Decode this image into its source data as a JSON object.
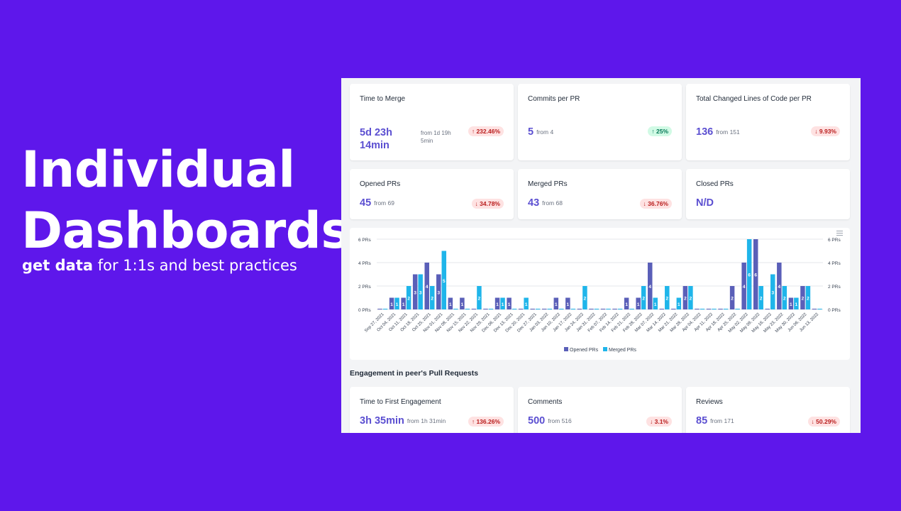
{
  "hero": {
    "title_line1": "Individual",
    "title_line2": "Dashboards",
    "subtitle_bold": "get data",
    "subtitle_rest": " for 1:1s and best practices"
  },
  "metrics_top": [
    {
      "title": "Time to Merge",
      "value_line1": "5d 23h",
      "value_line2": "14min",
      "from_line1": "from 1d 19h",
      "from_line2": "5min",
      "badge": "↑ 232.46%",
      "badge_type": "up"
    },
    {
      "title": "Commits per PR",
      "value": "5",
      "from": "from 4",
      "badge": "↑ 25%",
      "badge_type": "good"
    },
    {
      "title": "Total Changed Lines of Code per PR",
      "value": "136",
      "from": "from 151",
      "badge": "↓ 9.93%",
      "badge_type": "down"
    }
  ],
  "metrics_mid": [
    {
      "title": "Opened PRs",
      "value": "45",
      "from": "from 69",
      "badge": "↓ 34.78%",
      "badge_type": "down"
    },
    {
      "title": "Merged PRs",
      "value": "43",
      "from": "from 68",
      "badge": "↓ 36.76%",
      "badge_type": "down"
    },
    {
      "title": "Closed PRs",
      "value": "N/D",
      "from": "",
      "badge": "",
      "badge_type": ""
    }
  ],
  "chart_data": {
    "type": "bar",
    "categories": [
      "Sep 27, 2021",
      "Oct 04, 2021",
      "Oct 11, 2021",
      "Oct 18, 2021",
      "Oct 25, 2021",
      "Nov 01, 2021",
      "Nov 08, 2021",
      "Nov 15, 2021",
      "Nov 22, 2021",
      "Nov 29, 2021",
      "Dec 06, 2021",
      "Dec 13, 2021",
      "Dec 20, 2021",
      "Dec 27, 2021",
      "Jan 03, 2022",
      "Jan 10, 2022",
      "Jan 17, 2022",
      "Jan 24, 2022",
      "Jan 31, 2022",
      "Feb 07, 2022",
      "Feb 14, 2022",
      "Feb 21, 2022",
      "Feb 28, 2022",
      "Mar 07, 2022",
      "Mar 14, 2022",
      "Mar 21, 2022",
      "Mar 28, 2022",
      "Apr 04, 2022",
      "Apr 11, 2022",
      "Apr 18, 2022",
      "Apr 25, 2022",
      "May 02, 2022",
      "May 09, 2022",
      "May 16, 2022",
      "May 23, 2022",
      "May 30, 2022",
      "Jun 06, 2022",
      "Jun 13, 2022"
    ],
    "series": [
      {
        "name": "Opened PRs",
        "color": "#5a5fb8",
        "values": [
          0,
          1,
          1,
          3,
          4,
          3,
          1,
          1,
          0,
          0,
          1,
          1,
          0,
          0,
          0,
          1,
          1,
          0,
          0,
          0,
          0,
          1,
          1,
          4,
          0,
          0,
          2,
          0,
          0,
          0,
          2,
          4,
          6,
          0,
          4,
          1,
          2,
          0
        ]
      },
      {
        "name": "Merged PRs",
        "color": "#1fb5ea",
        "values": [
          0,
          1,
          2,
          3,
          2,
          5,
          0,
          0,
          2,
          0,
          1,
          0,
          1,
          0,
          0,
          0,
          0,
          2,
          0,
          0,
          0,
          0,
          2,
          1,
          2,
          1,
          2,
          0,
          0,
          0,
          0,
          6,
          2,
          3,
          2,
          1,
          2,
          0
        ]
      }
    ],
    "y_ticks": [
      "0 PRs",
      "2 PRs",
      "4 PRs",
      "6 PRs"
    ],
    "ylim": [
      0,
      6
    ],
    "legend": "bottom-center"
  },
  "engagement": {
    "section_title": "Engagement in peer's Pull Requests",
    "metrics": [
      {
        "title": "Time to First Engagement",
        "value": "3h 35min",
        "from": "from 1h 31min",
        "badge": "↑ 136.26%",
        "badge_type": "up"
      },
      {
        "title": "Comments",
        "value": "500",
        "from": "from 516",
        "badge": "↓ 3.1%",
        "badge_type": "down"
      },
      {
        "title": "Reviews",
        "value": "85",
        "from": "from 171",
        "badge": "↓ 50.29%",
        "badge_type": "down"
      }
    ]
  }
}
